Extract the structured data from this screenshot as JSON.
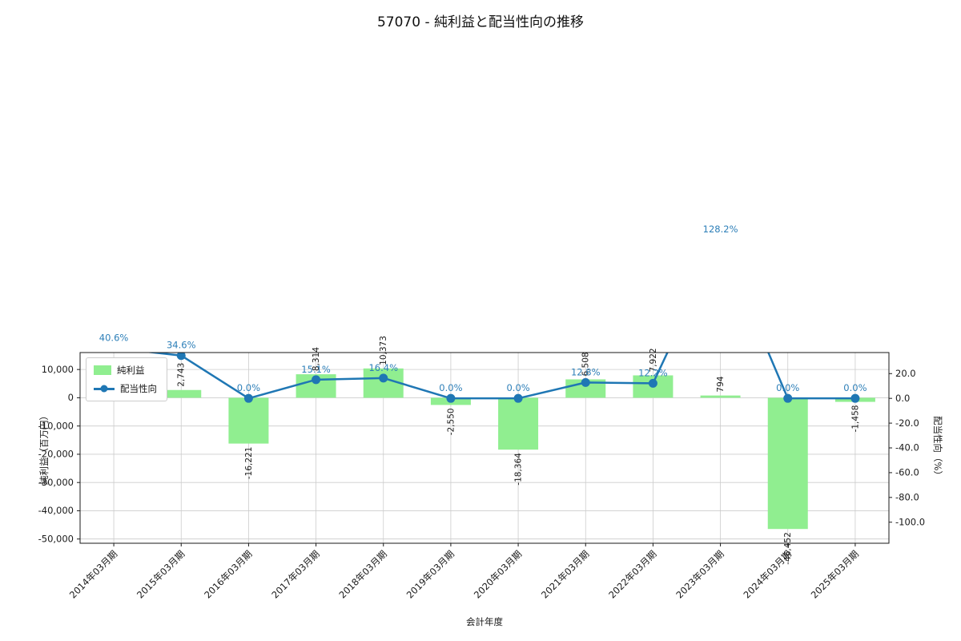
{
  "chart_data": {
    "type": "bar+line",
    "title": "57070 - 純利益と配当性向の推移",
    "xlabel": "会計年度",
    "ylabel_left": "純利益（百万円）",
    "ylabel_right": "配当性向（%）",
    "categories": [
      "2014年03月期",
      "2015年03月期",
      "2016年03月期",
      "2017年03月期",
      "2018年03月期",
      "2019年03月期",
      "2020年03月期",
      "2021年03月期",
      "2022年03月期",
      "2023年03月期",
      "2024年03月期",
      "2025年03月期"
    ],
    "series": [
      {
        "name": "純利益",
        "type": "bar",
        "axis": "left",
        "color": "#90ee90",
        "values": [
          null,
          2743,
          -16221,
          8314,
          10373,
          -2550,
          -18364,
          6508,
          7922,
          794,
          -46452,
          -1458
        ],
        "labels": [
          "",
          "2,743",
          "-16,221",
          "8,314",
          "10,373",
          "-2,550",
          "-18,364",
          "6,508",
          "7,922",
          "794",
          "-46,452",
          "-1,458"
        ]
      },
      {
        "name": "配当性向",
        "type": "line",
        "axis": "right",
        "color": "#1f77b4",
        "values": [
          40.6,
          34.6,
          0.0,
          15.1,
          16.4,
          0.0,
          0.0,
          12.8,
          12.2,
          128.2,
          0.0,
          0.0
        ],
        "labels": [
          "40.6%",
          "34.6%",
          "0.0%",
          "15.1%",
          "16.4%",
          "0.0%",
          "0.0%",
          "12.8%",
          "12.2%",
          "128.2%",
          "0.0%",
          "0.0%"
        ]
      }
    ],
    "left_axis": {
      "min": -51500,
      "max": 16000,
      "ticks": [
        10000,
        0,
        -10000,
        -20000,
        -30000,
        -40000,
        -50000
      ]
    },
    "right_axis": {
      "min": -117,
      "max": 37,
      "ticks": [
        20,
        0,
        -20,
        -40,
        -60,
        -80,
        -100
      ]
    },
    "grid": true,
    "legend_position": "upper left",
    "label_color": "#2d7fb8",
    "grid_color": "#cccccc",
    "spine_color": "#1a1a1a"
  }
}
